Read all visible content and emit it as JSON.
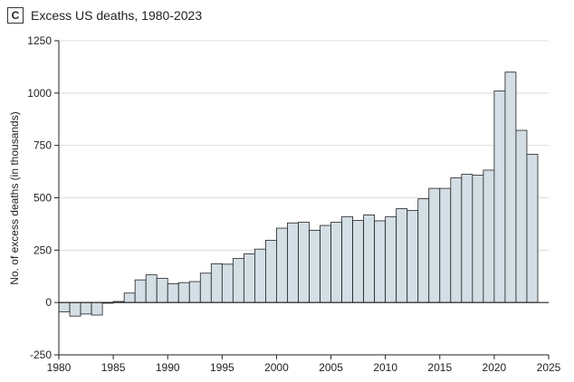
{
  "panel_label": "C",
  "chart_data": {
    "type": "bar",
    "title": "Excess US deaths, 1980-2023",
    "xlabel": "",
    "ylabel": "No. of excess deaths (in thousands)",
    "xlim": [
      1980,
      2025
    ],
    "ylim": [
      -250,
      1250
    ],
    "xticks": [
      1980,
      1985,
      1990,
      1995,
      2000,
      2005,
      2010,
      2015,
      2020,
      2025
    ],
    "yticks": [
      -250,
      0,
      250,
      500,
      750,
      1000,
      1250
    ],
    "grid": "horizontal",
    "categories": [
      1980,
      1981,
      1982,
      1983,
      1984,
      1985,
      1986,
      1987,
      1988,
      1989,
      1990,
      1991,
      1992,
      1993,
      1994,
      1995,
      1996,
      1997,
      1998,
      1999,
      2000,
      2001,
      2002,
      2003,
      2004,
      2005,
      2006,
      2007,
      2008,
      2009,
      2010,
      2011,
      2012,
      2013,
      2014,
      2015,
      2016,
      2017,
      2018,
      2019,
      2020,
      2021,
      2022,
      2023
    ],
    "values": [
      -45,
      -65,
      -55,
      -60,
      0,
      5,
      45,
      108,
      132,
      115,
      90,
      95,
      100,
      140,
      185,
      183,
      210,
      232,
      255,
      297,
      355,
      380,
      383,
      345,
      368,
      383,
      410,
      392,
      418,
      390,
      410,
      448,
      440,
      495,
      545,
      545,
      595,
      612,
      608,
      632,
      1010,
      1100,
      822,
      708
    ]
  }
}
